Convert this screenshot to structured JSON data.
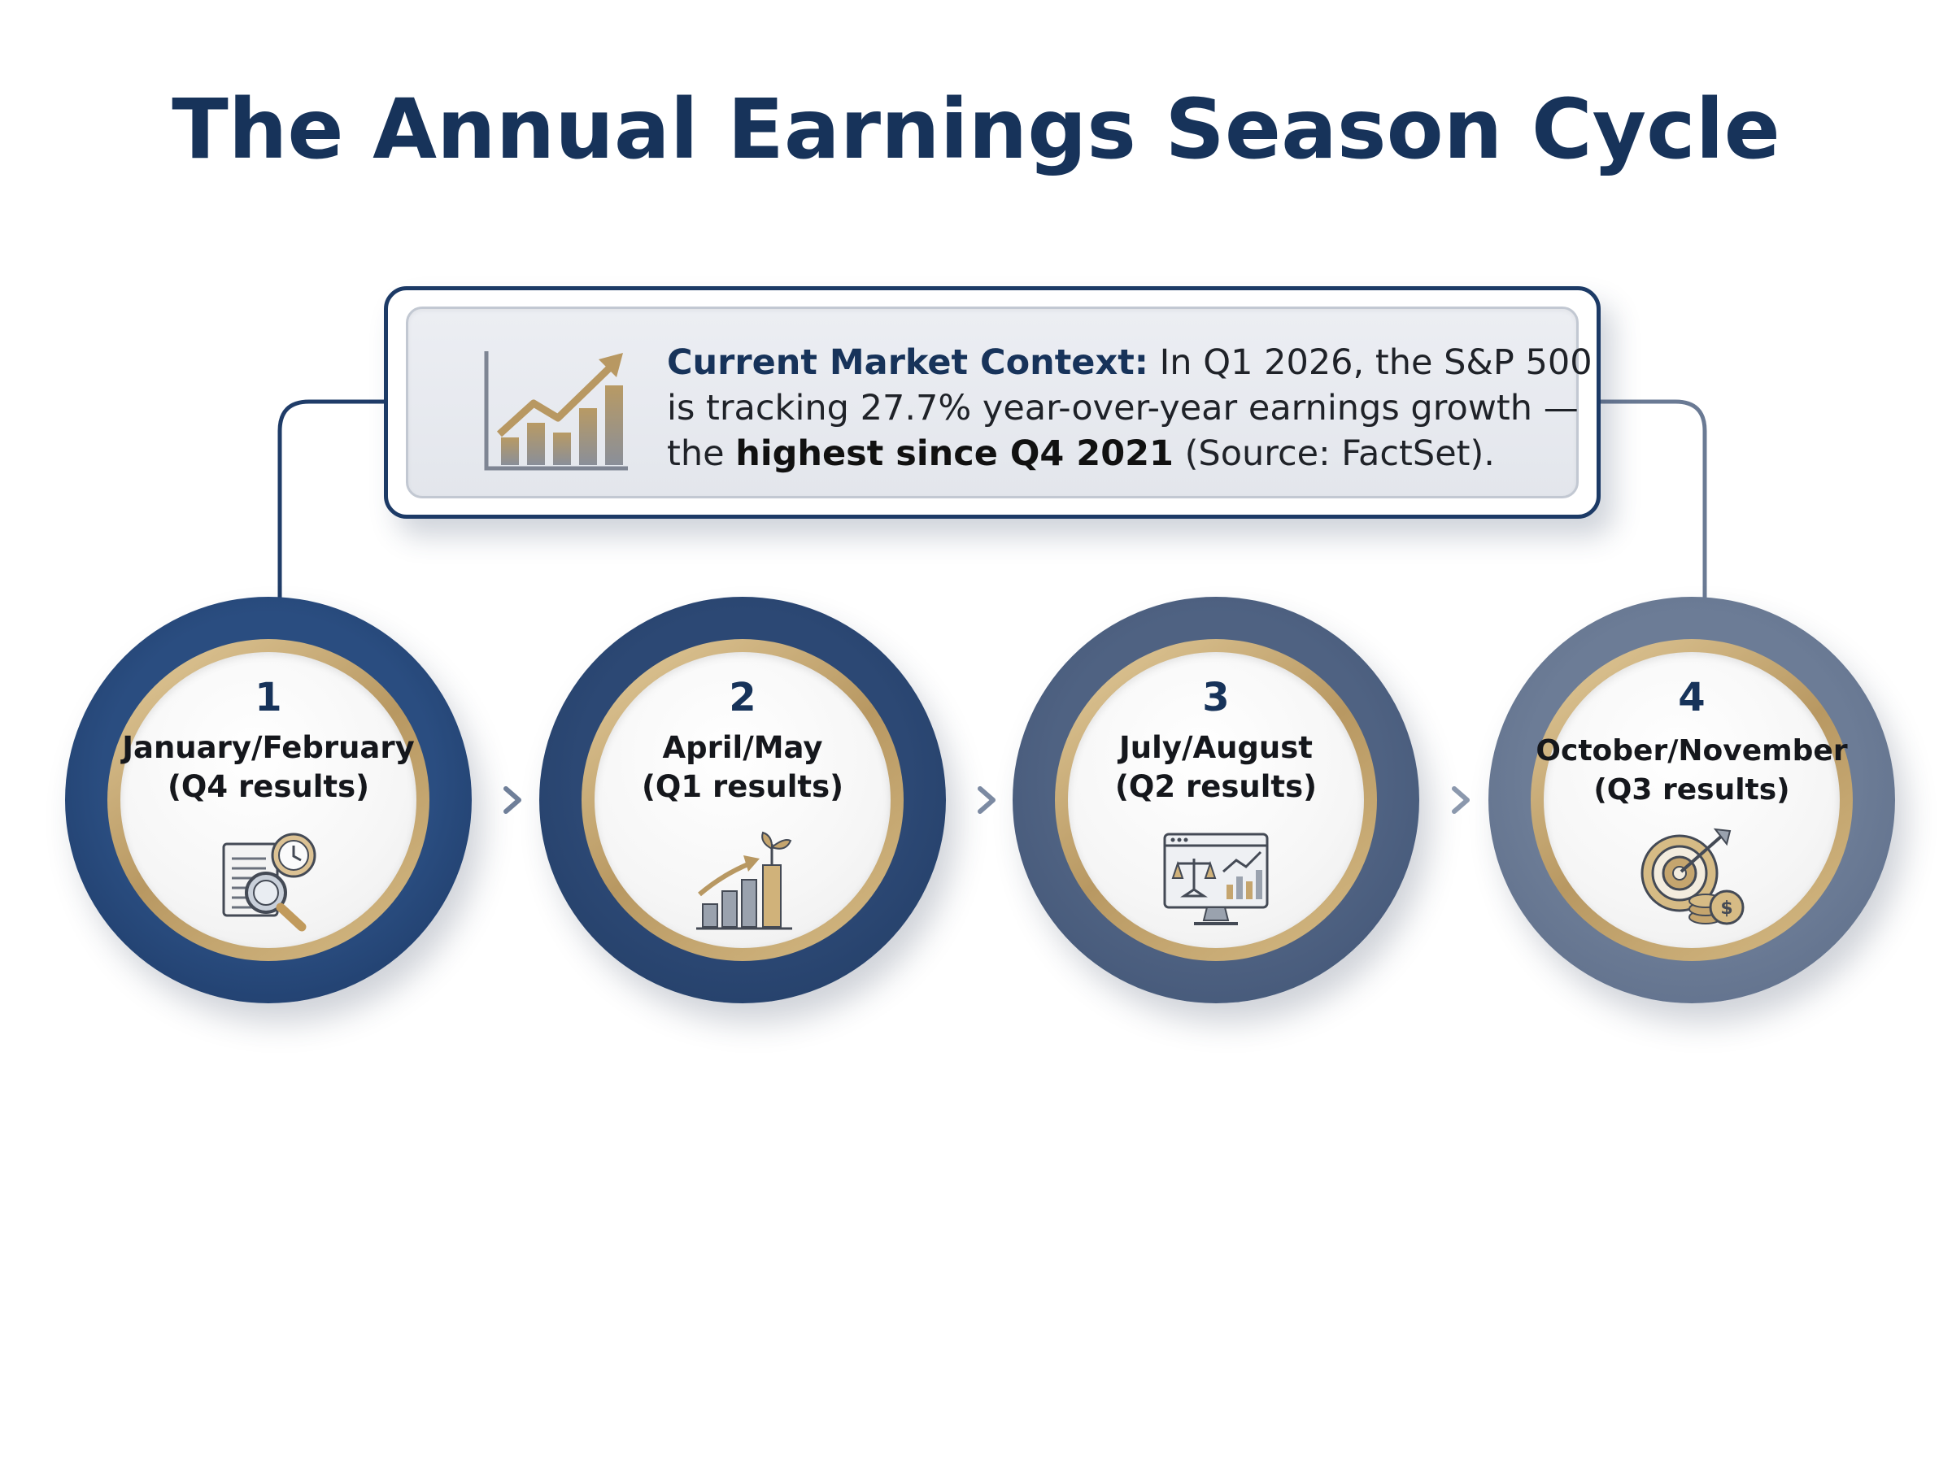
{
  "title": "The Annual Earnings Season Cycle",
  "context": {
    "label": "Current Market Context:",
    "text_a": " In Q1 2026, the S&P 500 is tracking 27.7% year-over-year earnings growth — the ",
    "bold": "highest since Q4 2021",
    "text_b": " (Source: FactSet).",
    "icon": "rising-bar-chart-icon"
  },
  "steps": [
    {
      "number": "1",
      "months": "January/February",
      "results": "(Q4 results)",
      "icon": "document-magnifier-clock-icon"
    },
    {
      "number": "2",
      "months": "April/May",
      "results": "(Q1 results)",
      "icon": "growth-bars-sprout-icon"
    },
    {
      "number": "3",
      "months": "July/August",
      "results": "(Q2 results)",
      "icon": "monitor-scales-chart-icon"
    },
    {
      "number": "4",
      "months": "October/November",
      "results": "(Q3 results)",
      "icon": "target-coins-icon"
    }
  ],
  "colors": {
    "navy": "#17335a",
    "gold": "#c5a56e",
    "step_rings": [
      "#2a4d80",
      "#2c4874",
      "#4f6282",
      "#6c7c96"
    ]
  }
}
